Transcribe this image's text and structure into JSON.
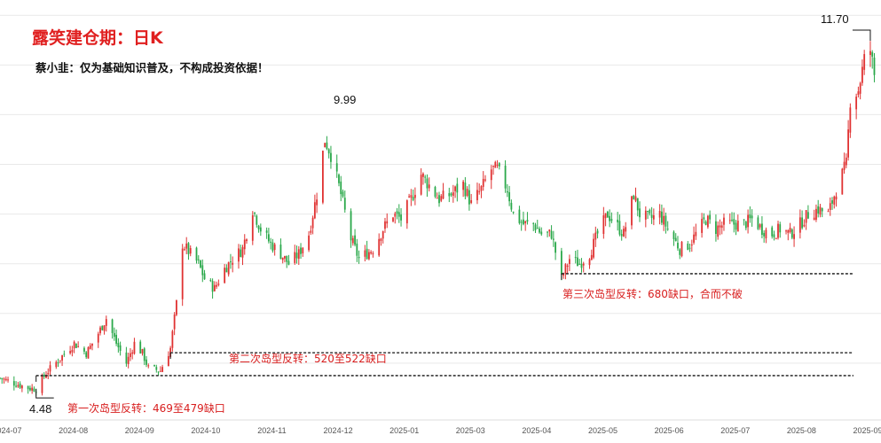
{
  "title": "露笑建仓期：日K",
  "subtitle": "蔡小韭：仅为基础知识普及，不构成投资依据！",
  "colors": {
    "up": "#e03232",
    "down": "#2aa84a",
    "accent": "#e02020",
    "grid": "#e9e9e9",
    "line": "#111111"
  },
  "chart_data": {
    "type": "candlestick",
    "title": "露笑建仓期：日K",
    "xlabel": "",
    "ylabel": "",
    "ylim": [
      4.0,
      12.2
    ],
    "grid": true,
    "x_ticks": [
      "2024-07",
      "2024-08",
      "2024-09",
      "2024-10",
      "2024-11",
      "2024-12",
      "2025-01",
      "2025-03",
      "2025-04",
      "2025-05",
      "2025-06",
      "2025-07",
      "2025-08",
      "2025-09"
    ],
    "close_series": [
      [
        "2024-07-01",
        4.7
      ],
      [
        "2024-07-08",
        4.6
      ],
      [
        "2024-07-15",
        4.5
      ],
      [
        "2024-07-19",
        4.48
      ],
      [
        "2024-07-24",
        4.8
      ],
      [
        "2024-07-31",
        5.1
      ],
      [
        "2024-08-07",
        5.4
      ],
      [
        "2024-08-13",
        5.2
      ],
      [
        "2024-08-19",
        5.6
      ],
      [
        "2024-08-23",
        5.9
      ],
      [
        "2024-08-28",
        5.4
      ],
      [
        "2024-09-02",
        5.0
      ],
      [
        "2024-09-06",
        5.4
      ],
      [
        "2024-09-10",
        5.2
      ],
      [
        "2024-09-13",
        4.9
      ],
      [
        "2024-09-19",
        4.85
      ],
      [
        "2024-09-24",
        5.3
      ],
      [
        "2024-09-27",
        6.2
      ],
      [
        "2024-09-30",
        7.4
      ],
      [
        "2024-10-08",
        7.0
      ],
      [
        "2024-10-11",
        6.7
      ],
      [
        "2024-10-16",
        6.5
      ],
      [
        "2024-10-21",
        6.9
      ],
      [
        "2024-10-25",
        7.1
      ],
      [
        "2024-10-30",
        7.3
      ],
      [
        "2024-11-04",
        8.1
      ],
      [
        "2024-11-08",
        7.7
      ],
      [
        "2024-11-13",
        7.4
      ],
      [
        "2024-11-18",
        7.2
      ],
      [
        "2024-11-22",
        7.0
      ],
      [
        "2024-11-27",
        7.2
      ],
      [
        "2024-12-02",
        7.6
      ],
      [
        "2024-12-06",
        8.4
      ],
      [
        "2024-12-10",
        9.5
      ],
      [
        "2024-12-13",
        9.2
      ],
      [
        "2024-12-18",
        8.4
      ],
      [
        "2024-12-23",
        7.5
      ],
      [
        "2024-12-27",
        7.1
      ],
      [
        "2025-01-03",
        7.3
      ],
      [
        "2025-01-08",
        7.7
      ],
      [
        "2025-01-13",
        8.0
      ],
      [
        "2025-01-17",
        7.9
      ],
      [
        "2025-01-22",
        8.3
      ],
      [
        "2025-01-27",
        8.8
      ],
      [
        "2025-02-05",
        8.3
      ],
      [
        "2025-02-11",
        8.4
      ],
      [
        "2025-02-17",
        8.6
      ],
      [
        "2025-02-21",
        8.2
      ],
      [
        "2025-02-26",
        8.5
      ],
      [
        "2025-03-03",
        8.9
      ],
      [
        "2025-03-06",
        8.9
      ],
      [
        "2025-03-11",
        8.5
      ],
      [
        "2025-03-14",
        8.0
      ],
      [
        "2025-03-19",
        7.8
      ],
      [
        "2025-03-24",
        7.8
      ],
      [
        "2025-03-28",
        7.6
      ],
      [
        "2025-04-02",
        7.6
      ],
      [
        "2025-04-07",
        6.7
      ],
      [
        "2025-04-11",
        7.1
      ],
      [
        "2025-04-16",
        7.0
      ],
      [
        "2025-04-21",
        7.2
      ],
      [
        "2025-04-25",
        7.6
      ],
      [
        "2025-04-30",
        8.0
      ],
      [
        "2025-05-08",
        7.6
      ],
      [
        "2025-05-13",
        8.4
      ],
      [
        "2025-05-16",
        8.0
      ],
      [
        "2025-05-21",
        7.9
      ],
      [
        "2025-05-26",
        8.0
      ],
      [
        "2025-05-30",
        7.7
      ],
      [
        "2025-06-05",
        7.3
      ],
      [
        "2025-06-10",
        7.4
      ],
      [
        "2025-06-13",
        7.6
      ],
      [
        "2025-06-18",
        7.9
      ],
      [
        "2025-06-23",
        7.7
      ],
      [
        "2025-06-27",
        7.8
      ],
      [
        "2025-07-02",
        7.8
      ],
      [
        "2025-07-07",
        7.8
      ],
      [
        "2025-07-11",
        7.9
      ],
      [
        "2025-07-16",
        7.7
      ],
      [
        "2025-07-21",
        7.6
      ],
      [
        "2025-07-25",
        7.7
      ],
      [
        "2025-07-30",
        7.6
      ],
      [
        "2025-08-04",
        7.8
      ],
      [
        "2025-08-08",
        8.0
      ],
      [
        "2025-08-13",
        8.1
      ],
      [
        "2025-08-18",
        8.0
      ],
      [
        "2025-08-22",
        8.5
      ],
      [
        "2025-08-27",
        9.0
      ],
      [
        "2025-08-29",
        10.3
      ],
      [
        "2025-09-02",
        10.5
      ],
      [
        "2025-09-05",
        11.1
      ],
      [
        "2025-09-08",
        11.3
      ],
      [
        "2025-09-10",
        10.8
      ]
    ],
    "levels": [
      {
        "label": "第一次岛型反转：469至479缺口",
        "from": "2024-07-19",
        "value": 4.75
      },
      {
        "label": "第二次岛型反转：520至522缺口",
        "from": "2024-09-24",
        "value": 5.21
      },
      {
        "label": "第三次岛型反转：680缺口，合而不破",
        "from": "2025-04-07",
        "value": 6.8
      }
    ],
    "markers": [
      {
        "label": "4.48",
        "date": "2024-07-19",
        "value": 4.48
      },
      {
        "label": "9.99",
        "date": "2024-12-10",
        "value": 9.99
      },
      {
        "label": "11.70",
        "date": "2025-09-08",
        "value": 11.7
      }
    ]
  }
}
